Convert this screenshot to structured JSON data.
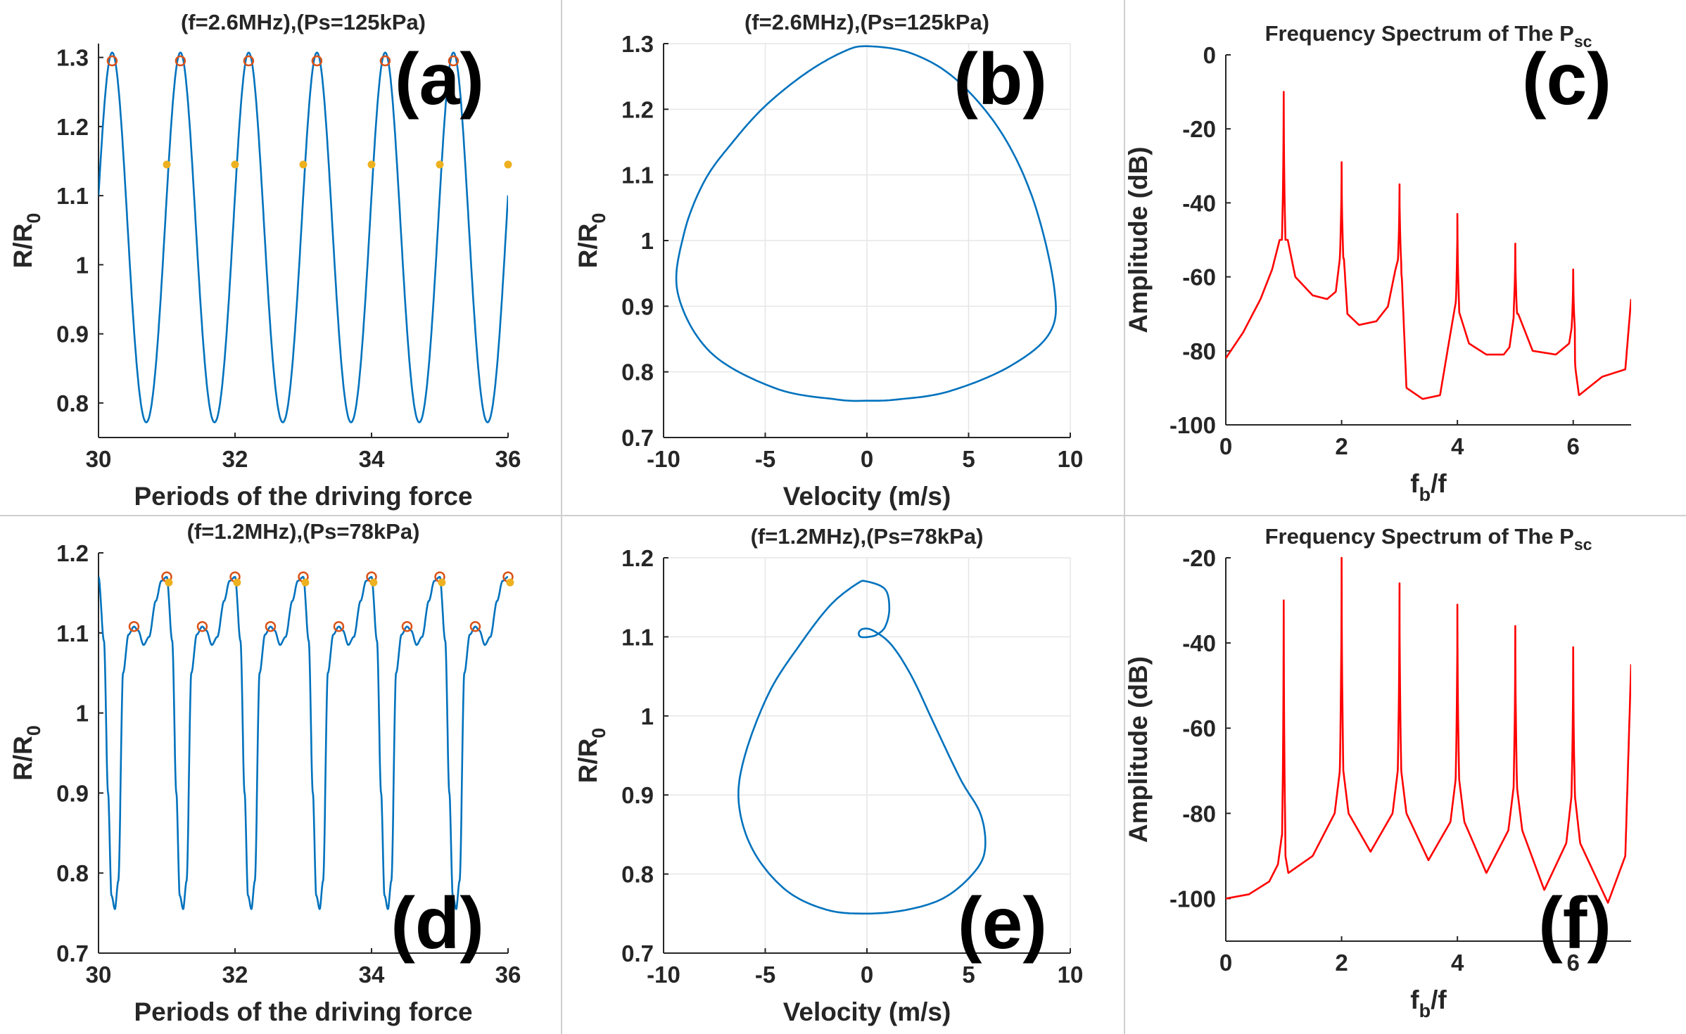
{
  "figure": {
    "colors": {
      "radius": "#0072bd",
      "phase": "#0072bd",
      "spectrum": "#ff0000",
      "maxima_marker": "#d95319",
      "sample_marker": "#edb120",
      "axis": "#262626",
      "grid": "#e6e6e6"
    }
  },
  "chart_data": [
    {
      "id": "a",
      "type": "line",
      "panel_label": "(a)",
      "title": "(f=2.6MHz),(Ps=125kPa)",
      "xlabel": "Periods of the driving force",
      "ylabel": "R/R",
      "ylabel_sub": "0",
      "xlim": [
        30,
        36
      ],
      "ylim": [
        0.75,
        1.32
      ],
      "xticks": [
        30,
        32,
        34,
        36
      ],
      "xticklabels": [
        "30",
        "32",
        "34",
        "36"
      ],
      "yticks": [
        0.8,
        0.9,
        1.0,
        1.1,
        1.2,
        1.3
      ],
      "yticklabels": [
        "0.8",
        "0.9",
        "1",
        "1.1",
        "1.2",
        "1.3"
      ],
      "grid": false,
      "series": [
        {
          "name": "R/R0",
          "kind": "curve",
          "color": "#0072bd",
          "x": [],
          "y": []
        },
        {
          "name": "maxima",
          "kind": "circles",
          "color": "#d95319",
          "x": [
            30.2,
            31.2,
            32.2,
            33.2,
            34.2,
            35.2
          ],
          "y": [
            1.295,
            1.295,
            1.295,
            1.295,
            1.295,
            1.295
          ]
        },
        {
          "name": "period samples",
          "kind": "dots",
          "color": "#edb120",
          "x": [
            31,
            32,
            33,
            34,
            35,
            36
          ],
          "y": [
            1.145,
            1.145,
            1.145,
            1.145,
            1.145,
            1.145
          ]
        }
      ]
    },
    {
      "id": "b",
      "type": "line",
      "panel_label": "(b)",
      "title": "(f=2.6MHz),(Ps=125kPa)",
      "xlabel": "Velocity (m/s)",
      "ylabel": "R/R",
      "ylabel_sub": "0",
      "xlim": [
        -10,
        10
      ],
      "ylim": [
        0.7,
        1.3
      ],
      "xticks": [
        -10,
        -5,
        0,
        5,
        10
      ],
      "xticklabels": [
        "-10",
        "-5",
        "0",
        "5",
        "10"
      ],
      "yticks": [
        0.7,
        0.8,
        0.9,
        1.0,
        1.1,
        1.2,
        1.3
      ],
      "yticklabels": [
        "0.7",
        "0.8",
        "0.9",
        "1",
        "1.1",
        "1.2",
        "1.3"
      ],
      "grid": true,
      "series": [
        {
          "name": "phase orbit",
          "kind": "curve",
          "color": "#0072bd",
          "x": [
            0,
            2.2,
            4.4,
            6.6,
            8.2,
            9.2,
            9.0,
            7.0,
            4.0,
            1.5,
            0,
            -1.5,
            -4.5,
            -7.7,
            -9.3,
            -9.0,
            -8.0,
            -6.6,
            -5.0,
            -3.0,
            -1.2,
            0
          ],
          "y": [
            1.296,
            1.285,
            1.245,
            1.165,
            1.06,
            0.93,
            0.86,
            0.808,
            0.77,
            0.758,
            0.756,
            0.758,
            0.775,
            0.83,
            0.92,
            1.01,
            1.09,
            1.15,
            1.205,
            1.255,
            1.287,
            1.296
          ]
        }
      ]
    },
    {
      "id": "c",
      "type": "line",
      "panel_label": "(c)",
      "title": "Frequency Spectrum of The P",
      "title_sub": "sc",
      "xlabel": "f",
      "xlabel_sub": "b",
      "xlabel_tail": "/f",
      "ylabel": "Amplitude (dB)",
      "xlim": [
        0,
        7
      ],
      "ylim": [
        -100,
        0
      ],
      "xticks": [
        0,
        2,
        4,
        6
      ],
      "xticklabels": [
        "0",
        "2",
        "4",
        "6"
      ],
      "yticks": [
        -100,
        -80,
        -60,
        -40,
        -20,
        0
      ],
      "yticklabels": [
        "-100",
        "-80",
        "-60",
        "-40",
        "-20",
        "0"
      ],
      "grid": false,
      "series": [
        {
          "name": "spectrum",
          "kind": "spectrum",
          "color": "#ff0000",
          "baseline_x": [
            0,
            0.3,
            0.6,
            0.8,
            0.93,
            1.07,
            1.2,
            1.5,
            1.75,
            1.9,
            1.97,
            2.04,
            2.1,
            2.3,
            2.6,
            2.8,
            2.93,
            2.98,
            3.04,
            3.12,
            3.4,
            3.7,
            3.85,
            3.97,
            4.04,
            4.2,
            4.5,
            4.8,
            4.9,
            4.98,
            5.05,
            5.3,
            5.7,
            5.93,
            5.99,
            6.04,
            6.1,
            6.5,
            6.9,
            7.0
          ],
          "baseline_y": [
            -82,
            -75,
            -66,
            -58,
            -50,
            -50,
            -60,
            -65,
            -66,
            -64,
            -55,
            -55,
            -70,
            -73,
            -72,
            -68,
            -58,
            -55,
            -60,
            -90,
            -93,
            -92,
            -78,
            -67,
            -70,
            -78,
            -81,
            -81,
            -79,
            -70,
            -70,
            -80,
            -81,
            -78,
            -72,
            -85,
            -92,
            -87,
            -85,
            -66
          ],
          "peaks_x": [
            1,
            2,
            3,
            4,
            5,
            6
          ],
          "peaks_y": [
            -10,
            -29,
            -35,
            -43,
            -51,
            -58
          ]
        }
      ]
    },
    {
      "id": "d",
      "type": "line",
      "panel_label": "(d)",
      "title": "(f=1.2MHz),(Ps=78kPa)",
      "xlabel": "Periods of the driving force",
      "ylabel": "R/R",
      "ylabel_sub": "0",
      "xlim": [
        30,
        36
      ],
      "ylim": [
        0.7,
        1.2
      ],
      "xticks": [
        30,
        32,
        34,
        36
      ],
      "xticklabels": [
        "30",
        "32",
        "34",
        "36"
      ],
      "yticks": [
        0.7,
        0.8,
        0.9,
        1.0,
        1.1,
        1.2
      ],
      "yticklabels": [
        "0.7",
        "0.8",
        "0.9",
        "1",
        "1.1",
        "1.2"
      ],
      "grid": false,
      "series": [
        {
          "name": "R/R0",
          "kind": "curve",
          "color": "#0072bd",
          "x": [],
          "y": []
        },
        {
          "name": "maxima",
          "kind": "circles",
          "color": "#d95319",
          "x": [
            30.52,
            31.0,
            31.52,
            32.0,
            32.52,
            33.0,
            33.52,
            34.0,
            34.52,
            35.0,
            35.52,
            36.0
          ],
          "y": [
            1.108,
            1.17,
            1.108,
            1.17,
            1.108,
            1.17,
            1.108,
            1.17,
            1.108,
            1.17,
            1.108,
            1.17
          ]
        },
        {
          "name": "period samples",
          "kind": "dots",
          "color": "#edb120",
          "x": [
            31.03,
            32.03,
            33.03,
            34.03,
            35.03,
            36.03
          ],
          "y": [
            1.163,
            1.163,
            1.163,
            1.163,
            1.163,
            1.163
          ]
        }
      ]
    },
    {
      "id": "e",
      "type": "line",
      "panel_label": "(e)",
      "title": "(f=1.2MHz),(Ps=78kPa)",
      "xlabel": "Velocity (m/s)",
      "ylabel": "R/R",
      "ylabel_sub": "0",
      "xlim": [
        -10,
        10
      ],
      "ylim": [
        0.7,
        1.2
      ],
      "xticks": [
        -10,
        -5,
        0,
        5,
        10
      ],
      "xticklabels": [
        "-10",
        "-5",
        "0",
        "5",
        "10"
      ],
      "yticks": [
        0.7,
        0.8,
        0.9,
        1.0,
        1.1,
        1.2
      ],
      "yticklabels": [
        "0.7",
        "0.8",
        "0.9",
        "1",
        "1.1",
        "1.2"
      ],
      "grid": true,
      "series": [
        {
          "name": "phase orbit",
          "kind": "curve",
          "color": "#0072bd",
          "x": [
            0,
            0.9,
            1.1,
            0.9,
            0.5,
            0.1,
            -0.3,
            -0.4,
            -0.2,
            0.3,
            1.2,
            2.2,
            3.3,
            4.6,
            5.6,
            5.8,
            5.2,
            3.8,
            2.0,
            0,
            -2.0,
            -4.0,
            -5.6,
            -6.3,
            -6.0,
            -4.8,
            -3.3,
            -1.8,
            -0.5,
            0
          ],
          "y": [
            1.17,
            1.16,
            1.135,
            1.113,
            1.103,
            1.1,
            1.1,
            1.105,
            1.11,
            1.108,
            1.09,
            1.05,
            0.99,
            0.92,
            0.875,
            0.83,
            0.8,
            0.77,
            0.755,
            0.75,
            0.755,
            0.78,
            0.83,
            0.89,
            0.95,
            1.03,
            1.09,
            1.14,
            1.167,
            1.17
          ]
        }
      ]
    },
    {
      "id": "f",
      "type": "line",
      "panel_label": "(f)",
      "title": "Frequency Spectrum of The P",
      "title_sub": "sc",
      "xlabel": "f",
      "xlabel_sub": "b",
      "xlabel_tail": "/f",
      "ylabel": "Amplitude (dB)",
      "xlim": [
        0,
        7
      ],
      "ylim": [
        -110,
        -20
      ],
      "xticks": [
        0,
        2,
        4,
        6
      ],
      "xticklabels": [
        "0",
        "2",
        "4",
        "6"
      ],
      "yticks": [
        -100,
        -80,
        -60,
        -40,
        -20
      ],
      "yticklabels": [
        "-100",
        "-80",
        "-60",
        "-40",
        "-20"
      ],
      "grid": false,
      "series": [
        {
          "name": "spectrum",
          "kind": "spectrum",
          "color": "#ff0000",
          "baseline_x": [
            0,
            0.4,
            0.75,
            0.9,
            0.97,
            1.03,
            1.08,
            1.5,
            1.88,
            1.97,
            2.03,
            2.12,
            2.5,
            2.88,
            2.97,
            3.03,
            3.12,
            3.5,
            3.88,
            3.97,
            4.03,
            4.12,
            4.5,
            4.88,
            4.97,
            5.03,
            5.12,
            5.5,
            5.88,
            5.97,
            6.03,
            6.12,
            6.6,
            6.9,
            7.0
          ],
          "baseline_y": [
            -100,
            -99,
            -96,
            -92,
            -85,
            -90,
            -94,
            -90,
            -80,
            -70,
            -70,
            -80,
            -89,
            -80,
            -70,
            -70,
            -80,
            -91,
            -82,
            -72,
            -72,
            -82,
            -94,
            -84,
            -74,
            -74,
            -84,
            -98,
            -87,
            -76,
            -76,
            -87,
            -101,
            -90,
            -45
          ],
          "peaks_x": [
            1,
            2,
            3,
            4,
            5,
            6
          ],
          "peaks_y": [
            -30,
            -20,
            -26,
            -31,
            -36,
            -41
          ]
        }
      ]
    }
  ]
}
